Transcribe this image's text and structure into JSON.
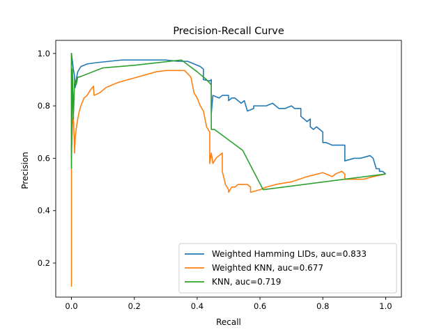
{
  "chart_data": {
    "type": "line",
    "title": "Precision-Recall Curve",
    "xlabel": "Recall",
    "ylabel": "Precision",
    "xlim": [
      -0.05,
      1.05
    ],
    "ylim": [
      0.07,
      1.05
    ],
    "xticks": [
      0.0,
      0.2,
      0.4,
      0.6,
      0.8,
      1.0
    ],
    "xtick_labels": [
      "0.0",
      "0.2",
      "0.4",
      "0.6",
      "0.8",
      "1.0"
    ],
    "yticks": [
      0.2,
      0.4,
      0.6,
      0.8,
      1.0
    ],
    "ytick_labels": [
      "0.2",
      "0.4",
      "0.6",
      "0.8",
      "1.0"
    ],
    "grid": false,
    "legend_position": "lower-right",
    "series": [
      {
        "name": "Weighted Hamming LIDs, auc=0.833",
        "color": "#1f77b4",
        "x": [
          0.0,
          0.0,
          0.003,
          0.006,
          0.009,
          0.012,
          0.015,
          0.02,
          0.03,
          0.05,
          0.08,
          0.12,
          0.16,
          0.2,
          0.25,
          0.3,
          0.34,
          0.37,
          0.4,
          0.41,
          0.42,
          0.42,
          0.44,
          0.445,
          0.445,
          0.45,
          0.47,
          0.48,
          0.5,
          0.5,
          0.51,
          0.52,
          0.54,
          0.55,
          0.56,
          0.58,
          0.58,
          0.6,
          0.62,
          0.64,
          0.66,
          0.68,
          0.7,
          0.71,
          0.73,
          0.73,
          0.74,
          0.75,
          0.76,
          0.76,
          0.77,
          0.78,
          0.79,
          0.8,
          0.8,
          0.81,
          0.83,
          0.84,
          0.85,
          0.87,
          0.87,
          0.9,
          0.92,
          0.95,
          0.96,
          0.97,
          0.98,
          0.98,
          0.99,
          1.0
        ],
        "y": [
          0.6,
          1.0,
          0.97,
          0.94,
          0.92,
          0.87,
          0.9,
          0.93,
          0.95,
          0.96,
          0.965,
          0.97,
          0.975,
          0.975,
          0.975,
          0.975,
          0.97,
          0.97,
          0.955,
          0.95,
          0.94,
          0.9,
          0.895,
          0.9,
          0.77,
          0.84,
          0.83,
          0.84,
          0.84,
          0.82,
          0.83,
          0.83,
          0.81,
          0.82,
          0.78,
          0.79,
          0.8,
          0.8,
          0.8,
          0.81,
          0.79,
          0.79,
          0.8,
          0.79,
          0.79,
          0.76,
          0.75,
          0.74,
          0.75,
          0.72,
          0.71,
          0.72,
          0.71,
          0.7,
          0.66,
          0.66,
          0.65,
          0.65,
          0.65,
          0.65,
          0.59,
          0.6,
          0.6,
          0.61,
          0.6,
          0.56,
          0.56,
          0.55,
          0.55,
          0.54
        ]
      },
      {
        "name": "Weighted KNN, auc=0.677",
        "color": "#ff7f0e",
        "x": [
          0.0,
          0.0,
          0.0,
          0.003,
          0.006,
          0.008,
          0.01,
          0.012,
          0.016,
          0.02,
          0.025,
          0.03,
          0.04,
          0.05,
          0.06,
          0.07,
          0.072,
          0.09,
          0.11,
          0.13,
          0.15,
          0.18,
          0.21,
          0.24,
          0.27,
          0.3,
          0.33,
          0.36,
          0.38,
          0.385,
          0.39,
          0.4,
          0.41,
          0.42,
          0.43,
          0.44,
          0.44,
          0.445,
          0.45,
          0.46,
          0.48,
          0.48,
          0.49,
          0.5,
          0.5,
          0.51,
          0.52,
          0.53,
          0.54,
          0.56,
          0.57,
          0.57,
          0.6,
          0.62,
          0.65,
          0.7,
          0.75,
          0.8,
          0.83,
          0.84,
          0.86,
          0.87,
          0.87,
          0.9,
          0.93,
          0.96,
          1.0
        ],
        "y": [
          0.11,
          0.55,
          0.6,
          0.73,
          0.76,
          0.7,
          0.62,
          0.68,
          0.72,
          0.75,
          0.78,
          0.8,
          0.83,
          0.84,
          0.86,
          0.875,
          0.84,
          0.85,
          0.87,
          0.88,
          0.89,
          0.9,
          0.91,
          0.92,
          0.93,
          0.935,
          0.935,
          0.935,
          0.91,
          0.88,
          0.85,
          0.83,
          0.8,
          0.78,
          0.72,
          0.7,
          0.58,
          0.62,
          0.58,
          0.6,
          0.62,
          0.55,
          0.5,
          0.48,
          0.47,
          0.49,
          0.49,
          0.5,
          0.5,
          0.5,
          0.49,
          0.47,
          0.48,
          0.49,
          0.5,
          0.51,
          0.53,
          0.545,
          0.53,
          0.54,
          0.55,
          0.54,
          0.52,
          0.52,
          0.52,
          0.53,
          0.54
        ]
      },
      {
        "name": "KNN, auc=0.719",
        "color": "#2ca02c",
        "x": [
          0.0,
          0.0,
          0.0,
          0.003,
          0.006,
          0.01,
          0.015,
          0.02,
          0.025,
          0.1,
          0.2,
          0.35,
          0.4,
          0.43,
          0.445,
          0.445,
          0.455,
          0.545,
          0.61,
          1.0
        ],
        "y": [
          0.56,
          1.0,
          0.6,
          0.94,
          0.75,
          0.9,
          0.88,
          0.91,
          0.91,
          0.945,
          0.955,
          0.975,
          0.93,
          0.9,
          0.88,
          0.71,
          0.71,
          0.63,
          0.48,
          0.54
        ]
      }
    ]
  }
}
